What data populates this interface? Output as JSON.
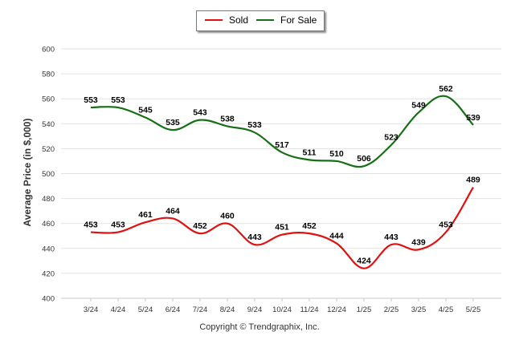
{
  "chart_data": {
    "type": "line",
    "categories": [
      "3/24",
      "4/24",
      "5/24",
      "6/24",
      "7/24",
      "8/24",
      "9/24",
      "10/24",
      "11/24",
      "12/24",
      "1/25",
      "2/25",
      "3/25",
      "4/25",
      "5/25"
    ],
    "series": [
      {
        "name": "Sold",
        "color": "#e01010",
        "values": [
          453,
          453,
          461,
          464,
          452,
          460,
          443,
          451,
          452,
          444,
          424,
          443,
          439,
          453,
          489
        ]
      },
      {
        "name": "For Sale",
        "color": "#157015",
        "values": [
          553,
          553,
          545,
          535,
          543,
          538,
          533,
          517,
          511,
          510,
          506,
          523,
          549,
          562,
          539
        ]
      }
    ],
    "ylabel": "Average Price (in $,000)",
    "xlabel": "",
    "ylim": [
      400,
      600
    ],
    "yticks": [
      400,
      420,
      440,
      460,
      480,
      500,
      520,
      540,
      560,
      580,
      600
    ],
    "grid": true,
    "legend_position": "top-center",
    "copyright": "Copyright © Trendgraphix, Inc."
  }
}
